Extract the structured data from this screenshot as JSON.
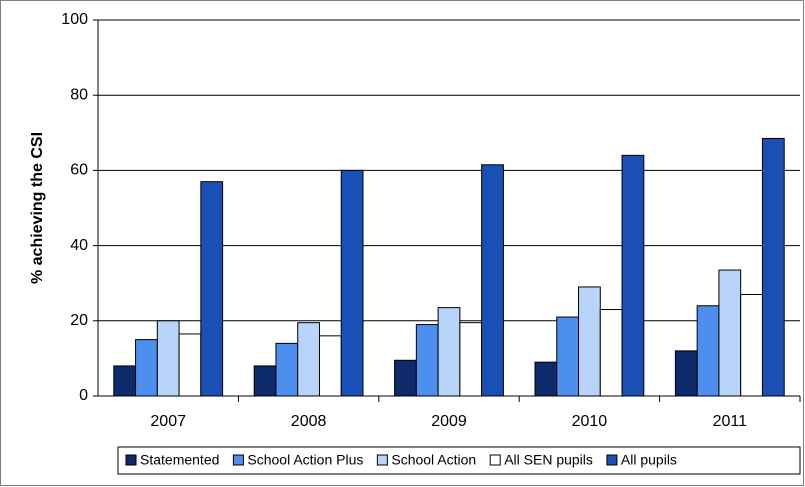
{
  "chart_data": {
    "type": "bar",
    "y_label": "% achieving the CSI",
    "categories": [
      "2007",
      "2008",
      "2009",
      "2010",
      "2011"
    ],
    "series": [
      {
        "name": "Statemented",
        "color": "#0d2a6b",
        "values": [
          8,
          8,
          9.5,
          9,
          12
        ]
      },
      {
        "name": "School Action Plus",
        "color": "#4d8fef",
        "values": [
          15,
          14,
          19,
          21,
          24
        ]
      },
      {
        "name": "School Action",
        "color": "#b8d4f8",
        "values": [
          20,
          19.5,
          23.5,
          29,
          33.5
        ]
      },
      {
        "name": "All SEN pupils",
        "color": "#ffffff",
        "values": [
          16.5,
          16,
          19.5,
          23,
          27
        ]
      },
      {
        "name": "All pupils",
        "color": "#1a4fb5",
        "values": [
          57,
          60,
          61.5,
          64,
          68.5
        ]
      }
    ],
    "ylim": [
      0,
      100
    ],
    "yticks": [
      0,
      20,
      40,
      60,
      80,
      100
    ],
    "grid": true,
    "legend": "bottom"
  }
}
